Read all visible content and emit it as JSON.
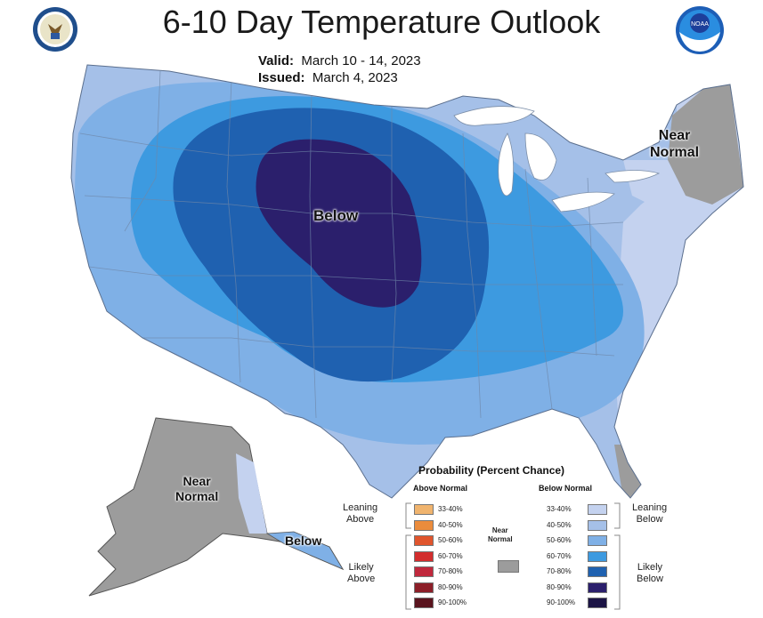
{
  "header": {
    "title": "6-10 Day Temperature Outlook",
    "valid_label": "Valid:",
    "valid_value": "March 10 - 14, 2023",
    "issued_label": "Issued:",
    "issued_value": "March 4, 2023"
  },
  "logos": {
    "left": "doc-seal-icon",
    "right": "noaa-logo-icon",
    "right_text": "NOAA"
  },
  "map_labels": {
    "conus_below": "Below",
    "ne_near": [
      "Near",
      "Normal"
    ],
    "ak_near": [
      "Near",
      "Normal"
    ],
    "ak_below": "Below"
  },
  "legend": {
    "title": "Probability (Percent Chance)",
    "above_header": "Above Normal",
    "below_header": "Below Normal",
    "near_header": [
      "Near",
      "Normal"
    ],
    "above": [
      {
        "label": "33-40%",
        "color": "#f0b46e"
      },
      {
        "label": "40-50%",
        "color": "#eb8c3c"
      },
      {
        "label": "50-60%",
        "color": "#e0552d"
      },
      {
        "label": "60-70%",
        "color": "#d22d2d"
      },
      {
        "label": "70-80%",
        "color": "#c0283c"
      },
      {
        "label": "80-90%",
        "color": "#8c1e28"
      },
      {
        "label": "90-100%",
        "color": "#5a141e"
      }
    ],
    "below": [
      {
        "label": "33-40%",
        "color": "#c4d2ef"
      },
      {
        "label": "40-50%",
        "color": "#a5c0e8"
      },
      {
        "label": "50-60%",
        "color": "#7fb0e6"
      },
      {
        "label": "60-70%",
        "color": "#3d9ae0"
      },
      {
        "label": "70-80%",
        "color": "#1f61b0"
      },
      {
        "label": "80-90%",
        "color": "#2b1f6c"
      },
      {
        "label": "90-100%",
        "color": "#1c1445"
      }
    ],
    "near_color": "#9c9c9c",
    "leaning_above": [
      "Leaning",
      "Above"
    ],
    "likely_above": [
      "Likely",
      "Above"
    ],
    "leaning_below": [
      "Leaning",
      "Below"
    ],
    "likely_below": [
      "Likely",
      "Below"
    ]
  }
}
